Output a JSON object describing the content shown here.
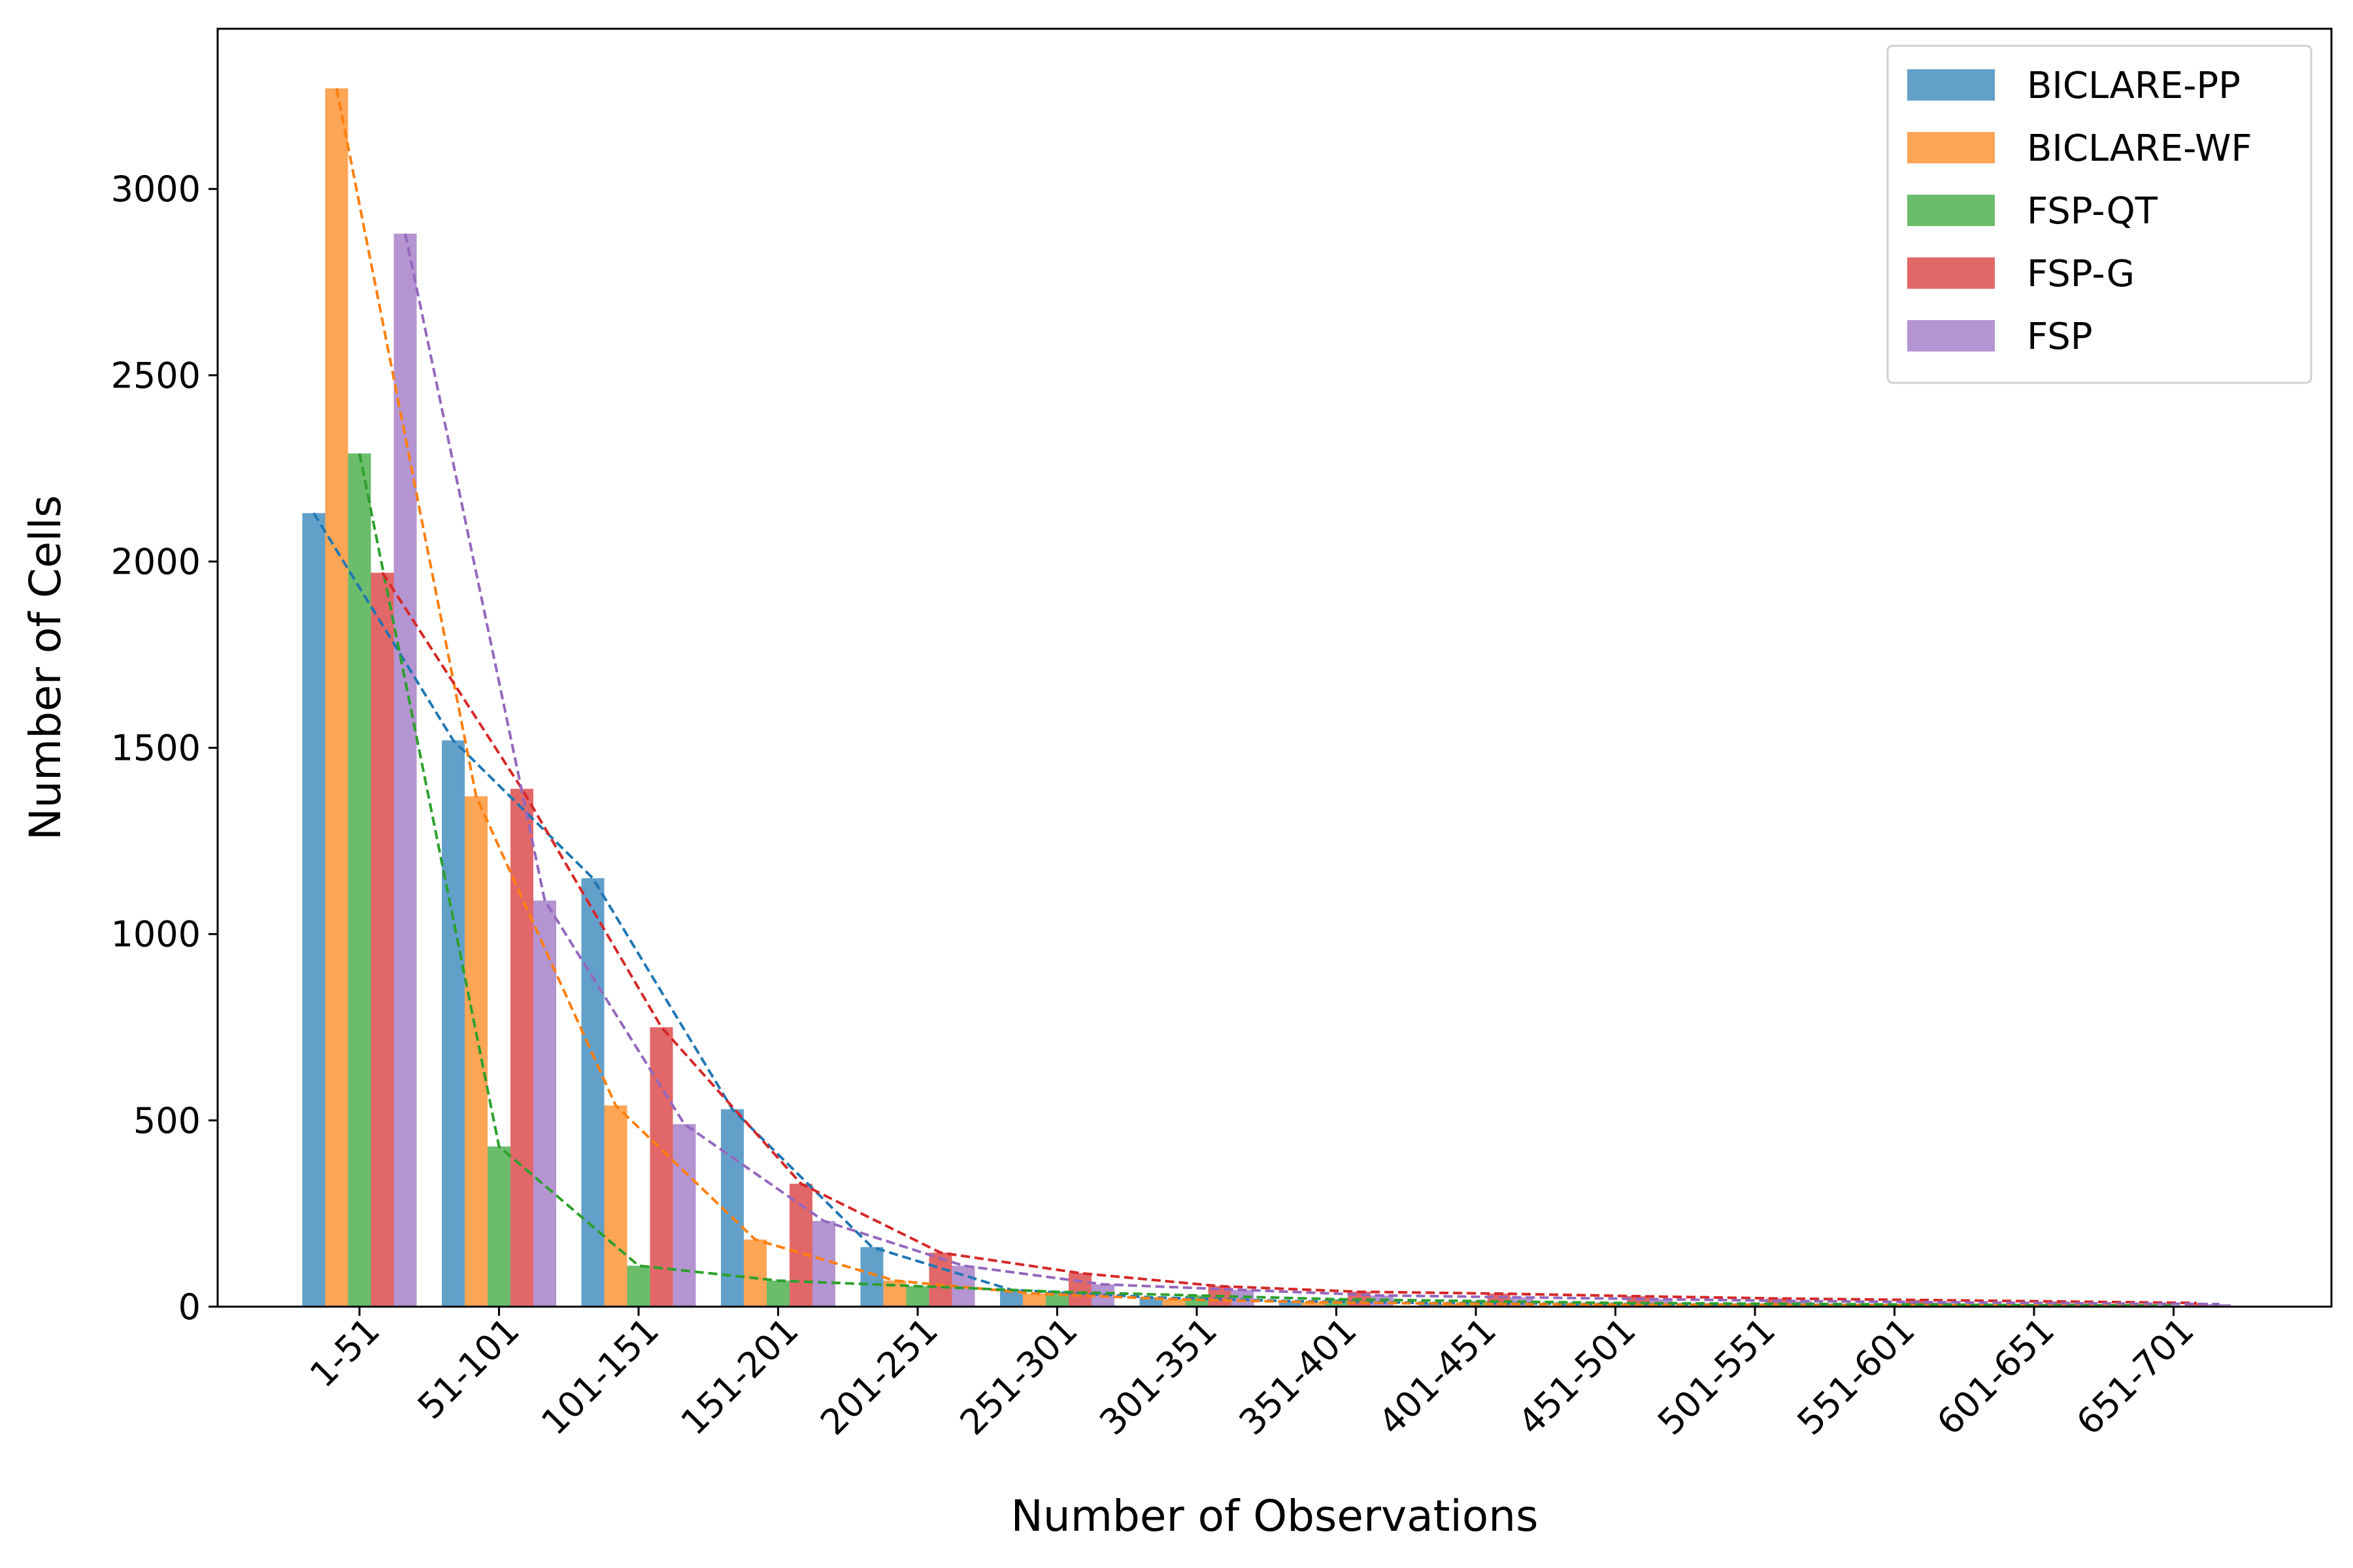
{
  "chart_data": {
    "type": "bar",
    "xlabel": "Number of Observations",
    "ylabel": "Number of Cells",
    "ylim": [
      0,
      3430
    ],
    "yticks": [
      0,
      500,
      1000,
      1500,
      2000,
      2500,
      3000
    ],
    "grid": false,
    "legend_position": "top-right",
    "categories": [
      "1-51",
      "51-101",
      "101-151",
      "151-201",
      "201-251",
      "251-301",
      "301-351",
      "351-401",
      "401-451",
      "451-501",
      "501-551",
      "551-601",
      "601-651",
      "651-701"
    ],
    "series": [
      {
        "name": "BICLARE-PP",
        "color": "#1f77b4",
        "values": [
          2130,
          1520,
          1150,
          530,
          160,
          45,
          25,
          15,
          10,
          8,
          6,
          5,
          4,
          3
        ]
      },
      {
        "name": "BICLARE-WF",
        "color": "#ff7f0e",
        "values": [
          3270,
          1370,
          540,
          180,
          70,
          35,
          20,
          12,
          8,
          6,
          5,
          4,
          3,
          2
        ]
      },
      {
        "name": "FSP-QT",
        "color": "#2ca02c",
        "values": [
          2290,
          430,
          110,
          70,
          55,
          40,
          30,
          20,
          15,
          10,
          8,
          6,
          4,
          3
        ]
      },
      {
        "name": "FSP-G",
        "color": "#d62728",
        "values": [
          1970,
          1390,
          750,
          330,
          145,
          90,
          55,
          40,
          35,
          28,
          22,
          18,
          14,
          10
        ]
      },
      {
        "name": "FSP",
        "color": "#9467bd",
        "values": [
          2880,
          1090,
          490,
          230,
          110,
          60,
          45,
          30,
          25,
          20,
          15,
          12,
          9,
          7
        ]
      }
    ]
  }
}
